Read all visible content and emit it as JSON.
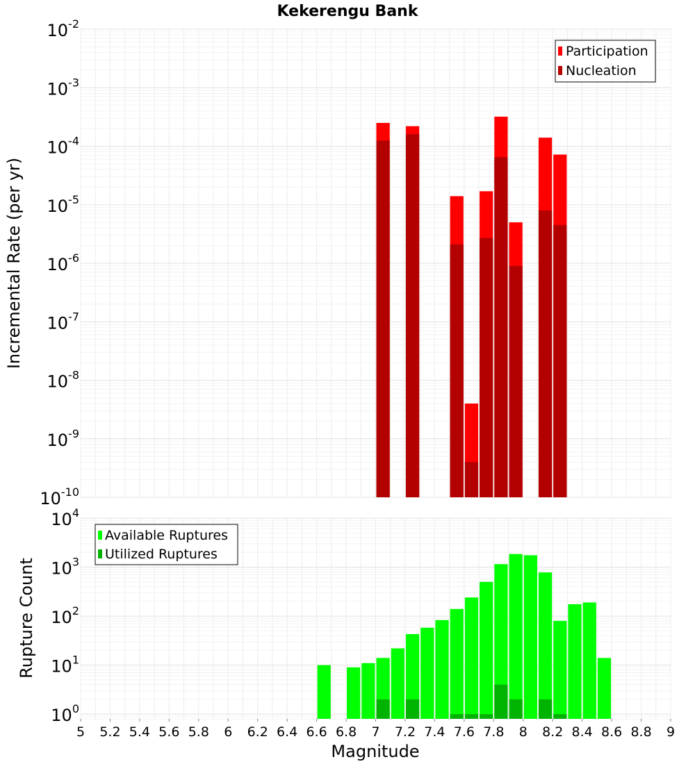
{
  "chart_data": [
    {
      "type": "bar",
      "title": "Kekerengu Bank",
      "xlabel": "",
      "ylabel": "Incremental Rate (per yr)",
      "yscale": "log",
      "xlim": [
        5,
        9
      ],
      "ylim": [
        1e-10,
        0.01
      ],
      "ytick_mantissa": "10",
      "ytick_exponents": [
        "-10",
        "-9",
        "-8",
        "-7",
        "-6",
        "-5",
        "-4",
        "-3",
        "-2"
      ],
      "legend_position": "top-right",
      "series": [
        {
          "name": "Participation",
          "color": "#ff0000",
          "x": [
            7.05,
            7.25,
            7.55,
            7.65,
            7.75,
            7.85,
            7.95,
            8.15,
            8.25
          ],
          "values": [
            0.00025,
            0.00022,
            1.4e-05,
            4e-09,
            1.7e-05,
            0.00032,
            5e-06,
            0.00014,
            7.2e-05
          ]
        },
        {
          "name": "Nucleation",
          "color": "#b30000",
          "x": [
            7.05,
            7.25,
            7.55,
            7.65,
            7.75,
            7.85,
            7.95,
            8.15,
            8.25
          ],
          "values": [
            0.000125,
            0.00016,
            2.1e-06,
            4e-10,
            2.7e-06,
            6.5e-05,
            9e-07,
            8e-06,
            4.5e-06
          ]
        }
      ]
    },
    {
      "type": "bar",
      "title": "",
      "xlabel": "Magnitude",
      "ylabel": "Rupture Count",
      "yscale": "log",
      "xlim": [
        5,
        9
      ],
      "ylim": [
        0.8,
        10000
      ],
      "xticks": [
        "5",
        "5.2",
        "5.4",
        "5.6",
        "5.8",
        "6",
        "6.2",
        "6.4",
        "6.6",
        "6.8",
        "7",
        "7.2",
        "7.4",
        "7.6",
        "7.8",
        "8",
        "8.2",
        "8.4",
        "8.6",
        "8.8",
        "9"
      ],
      "ytick_mantissa": "10",
      "ytick_exponents": [
        "0",
        "1",
        "2",
        "3",
        "4"
      ],
      "legend_position": "top-left",
      "series": [
        {
          "name": "Available Ruptures",
          "color": "#00ff00",
          "x": [
            6.65,
            6.85,
            6.95,
            7.05,
            7.15,
            7.25,
            7.35,
            7.45,
            7.55,
            7.65,
            7.75,
            7.85,
            7.95,
            8.05,
            8.15,
            8.25,
            8.35,
            8.45,
            8.55
          ],
          "values": [
            10,
            9,
            11,
            14,
            22,
            43,
            58,
            83,
            140,
            240,
            500,
            1150,
            1850,
            1750,
            780,
            80,
            175,
            190,
            14
          ]
        },
        {
          "name": "Utilized Ruptures",
          "color": "#00b300",
          "x": [
            7.05,
            7.25,
            7.55,
            7.65,
            7.75,
            7.85,
            7.95,
            8.15,
            8.25
          ],
          "values": [
            2,
            2,
            1,
            1,
            1,
            4,
            2,
            2,
            1
          ]
        }
      ]
    }
  ]
}
